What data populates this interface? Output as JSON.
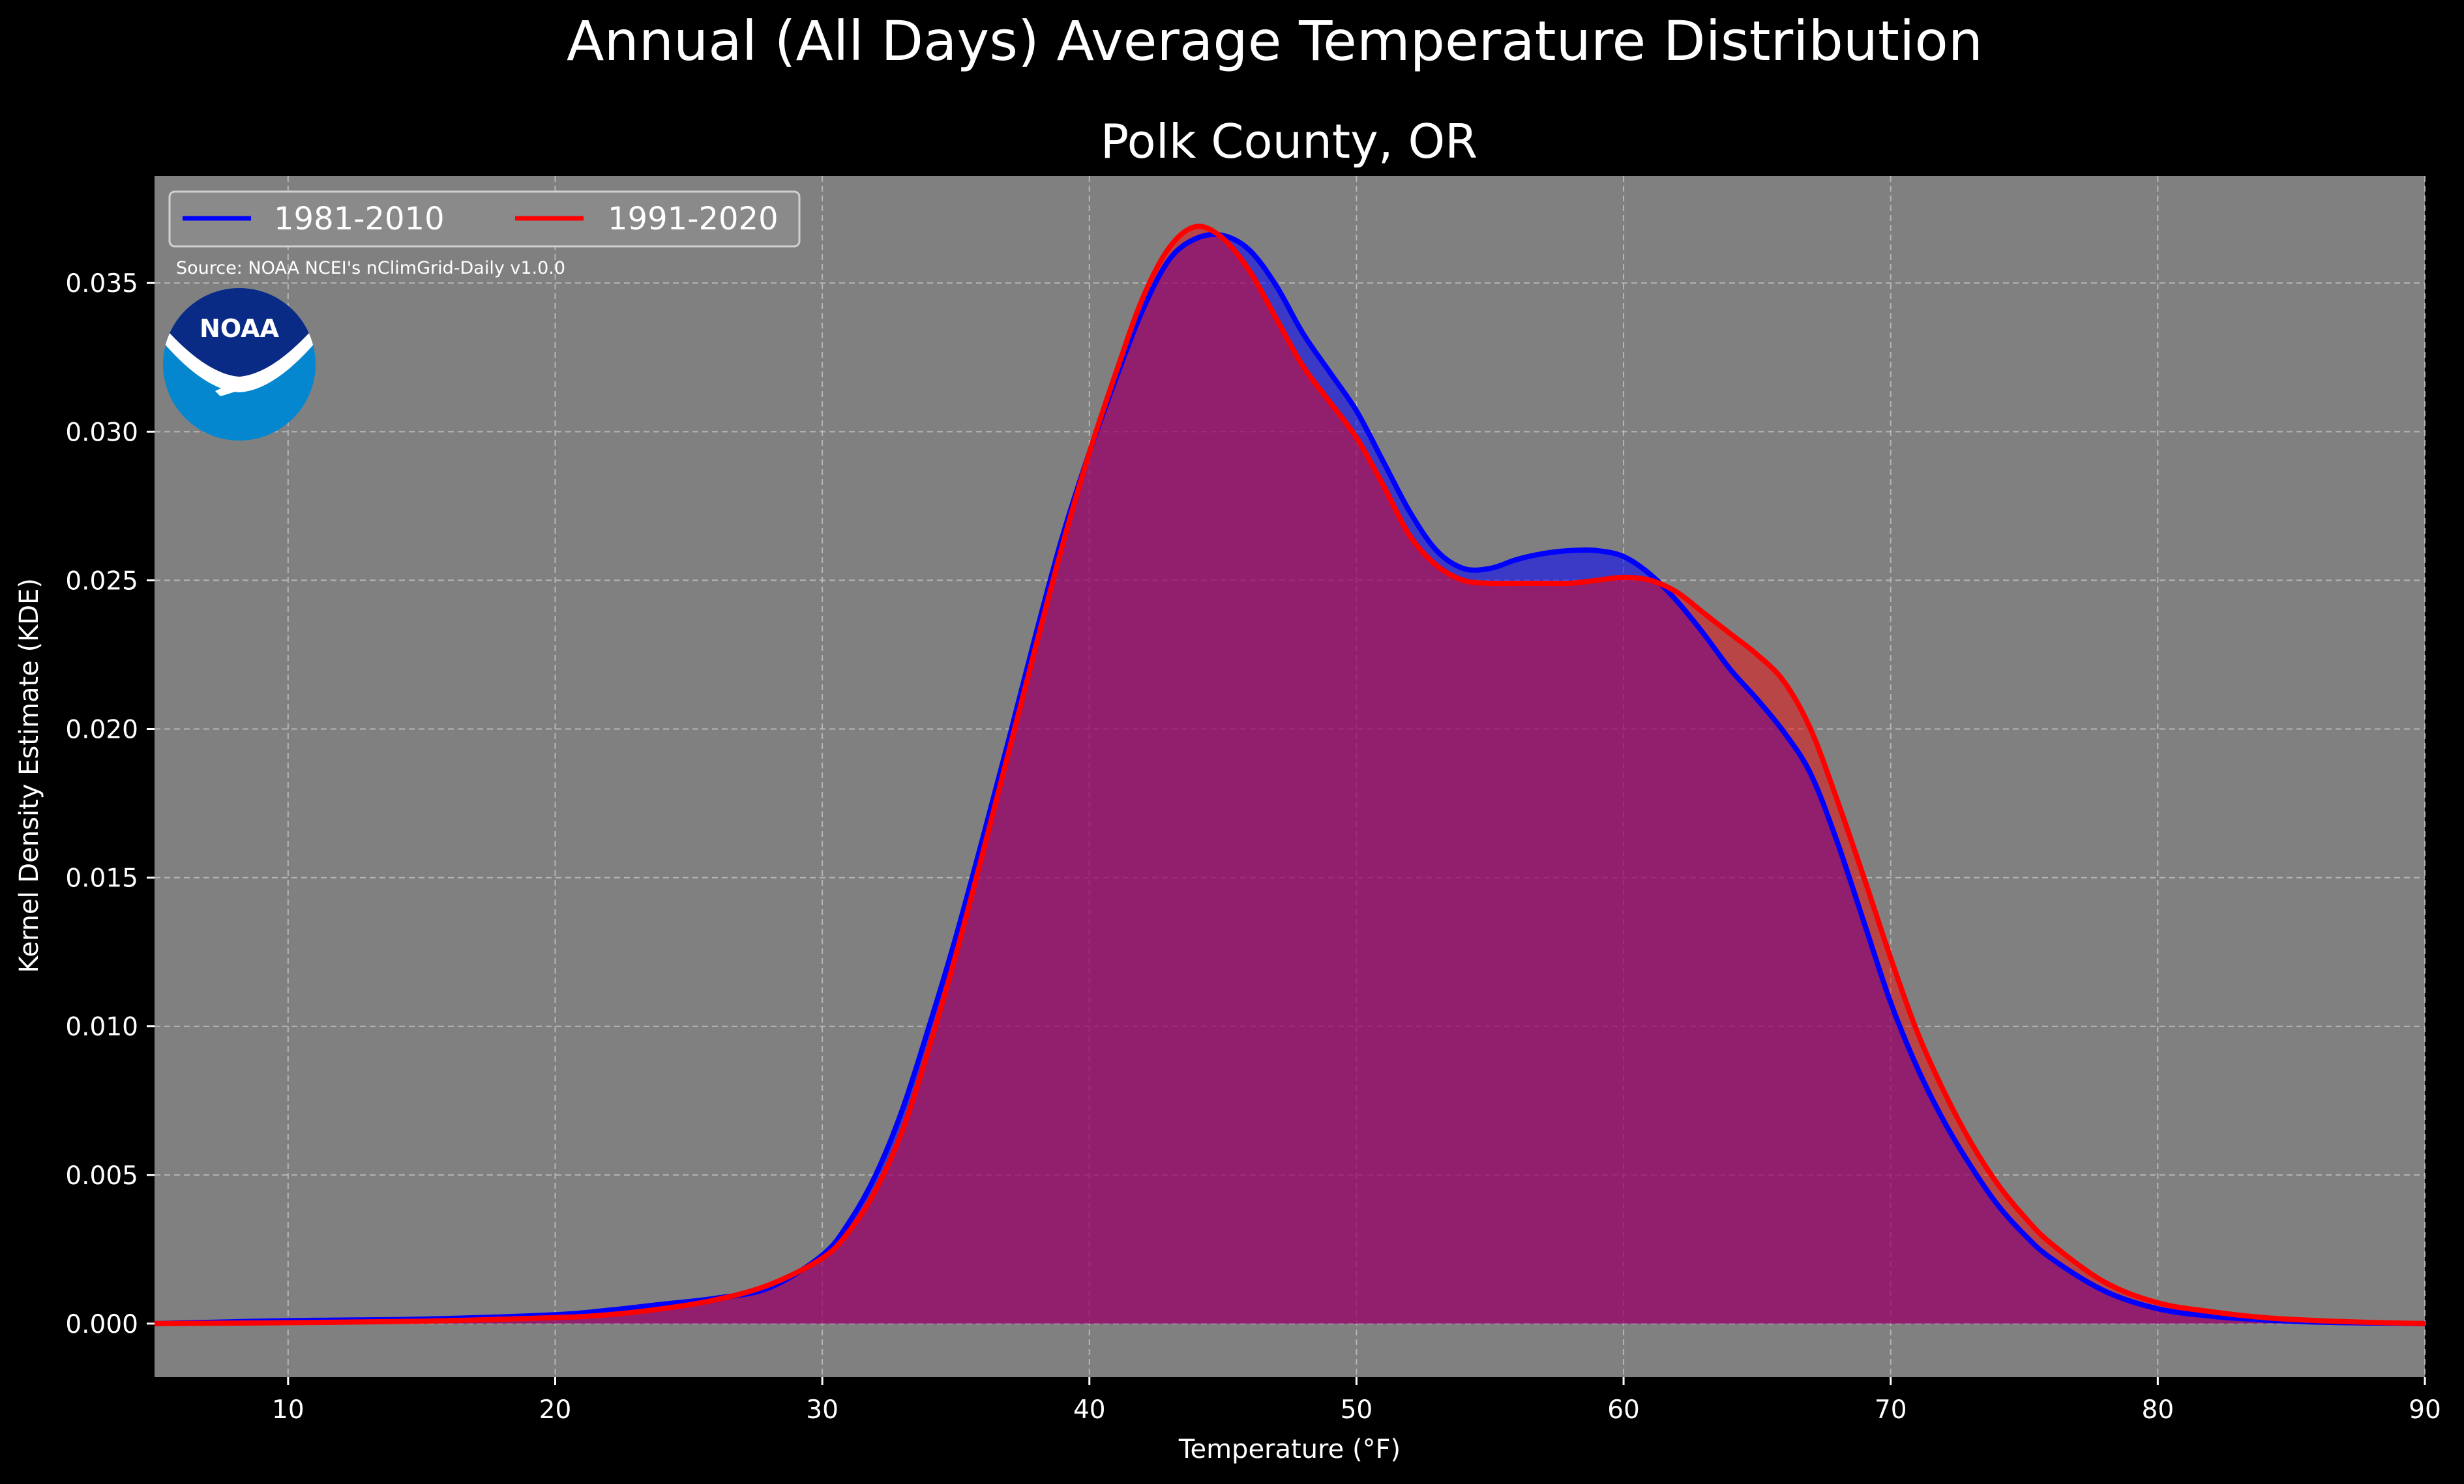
{
  "figure": {
    "title": "Annual (All Days) Average Temperature Distribution",
    "subtitle": "Polk County, OR",
    "source": "Source: NOAA NCEI's nClimGrid-Daily v1.0.0",
    "logo_text": "NOAA",
    "logo_icon": "noaa-logo-icon"
  },
  "colors": {
    "background": "#000000",
    "plot_background": "#808080",
    "series_1981": "#0000ff",
    "series_1991": "#ff0000",
    "overlap_fill": "#9e1f5e",
    "logo_dark": "#0a2b85",
    "logo_light": "#0587d0"
  },
  "chart_data": {
    "type": "area",
    "xlabel": "Temperature (°F)",
    "ylabel": "Kernel Density Estimate (KDE)",
    "xlim": [
      5,
      90
    ],
    "ylim": [
      -0.0018,
      0.0386
    ],
    "x_ticks": [
      "10",
      "20",
      "30",
      "40",
      "50",
      "60",
      "70",
      "80",
      "90"
    ],
    "x_tick_values": [
      10,
      20,
      30,
      40,
      50,
      60,
      70,
      80,
      90
    ],
    "y_ticks": [
      "0.000",
      "0.005",
      "0.010",
      "0.015",
      "0.020",
      "0.025",
      "0.030",
      "0.035"
    ],
    "y_tick_values": [
      0,
      0.005,
      0.01,
      0.015,
      0.02,
      0.025,
      0.03,
      0.035
    ],
    "grid": true,
    "legend": {
      "placement": "upper-left",
      "columns": 2
    },
    "series": [
      {
        "name": "1981-2010",
        "color": "#0000ff",
        "x": [
          5,
          10,
          15,
          20,
          22,
          24,
          26,
          28,
          30,
          31,
          32,
          33,
          34,
          35,
          36,
          37,
          38,
          39,
          40,
          41,
          42,
          43,
          44,
          45,
          46,
          47,
          48,
          49,
          50,
          51,
          52,
          53,
          54,
          55,
          56,
          57,
          58,
          59,
          60,
          61,
          62,
          63,
          64,
          65,
          66,
          67,
          68,
          69,
          70,
          71,
          72,
          73,
          74,
          75,
          76,
          78,
          80,
          82,
          84,
          86,
          88,
          90
        ],
        "y": [
          0.0,
          0.0001,
          0.00015,
          0.0003,
          0.00045,
          0.00065,
          0.00085,
          0.0012,
          0.0023,
          0.0034,
          0.005,
          0.0072,
          0.01,
          0.013,
          0.0163,
          0.0197,
          0.0232,
          0.0265,
          0.0293,
          0.0318,
          0.0341,
          0.0358,
          0.0365,
          0.0366,
          0.0361,
          0.0349,
          0.0333,
          0.032,
          0.0307,
          0.029,
          0.0273,
          0.026,
          0.0254,
          0.0254,
          0.0257,
          0.0259,
          0.026,
          0.026,
          0.0258,
          0.0252,
          0.0243,
          0.0232,
          0.022,
          0.021,
          0.0199,
          0.0185,
          0.0162,
          0.0135,
          0.0108,
          0.0086,
          0.0068,
          0.0053,
          0.004,
          0.003,
          0.0022,
          0.0011,
          0.0005,
          0.00025,
          0.00012,
          5e-05,
          2e-05,
          0.0
        ]
      },
      {
        "name": "1991-2020",
        "color": "#ff0000",
        "x": [
          5,
          10,
          15,
          20,
          22,
          24,
          26,
          28,
          30,
          31,
          32,
          33,
          34,
          35,
          36,
          37,
          38,
          39,
          40,
          41,
          42,
          43,
          44,
          45,
          46,
          47,
          48,
          49,
          50,
          51,
          52,
          53,
          54,
          55,
          56,
          57,
          58,
          59,
          60,
          61,
          62,
          63,
          64,
          65,
          66,
          67,
          68,
          69,
          70,
          71,
          72,
          73,
          74,
          75,
          76,
          78,
          80,
          82,
          84,
          86,
          88,
          90
        ],
        "y": [
          0.0,
          3e-05,
          8e-05,
          0.0002,
          0.0003,
          0.0005,
          0.0008,
          0.0013,
          0.0022,
          0.0031,
          0.0045,
          0.0065,
          0.0093,
          0.0124,
          0.0158,
          0.0193,
          0.0228,
          0.0262,
          0.0293,
          0.032,
          0.0345,
          0.0362,
          0.0369,
          0.0365,
          0.0354,
          0.0338,
          0.0322,
          0.031,
          0.0298,
          0.0282,
          0.0265,
          0.0255,
          0.025,
          0.0249,
          0.0249,
          0.0249,
          0.0249,
          0.025,
          0.0251,
          0.025,
          0.0246,
          0.0239,
          0.0232,
          0.0225,
          0.0216,
          0.02,
          0.0176,
          0.015,
          0.0123,
          0.0098,
          0.0078,
          0.0061,
          0.0047,
          0.0036,
          0.0027,
          0.0014,
          0.0007,
          0.0004,
          0.0002,
          0.0001,
          4e-05,
          0.0
        ]
      }
    ]
  }
}
